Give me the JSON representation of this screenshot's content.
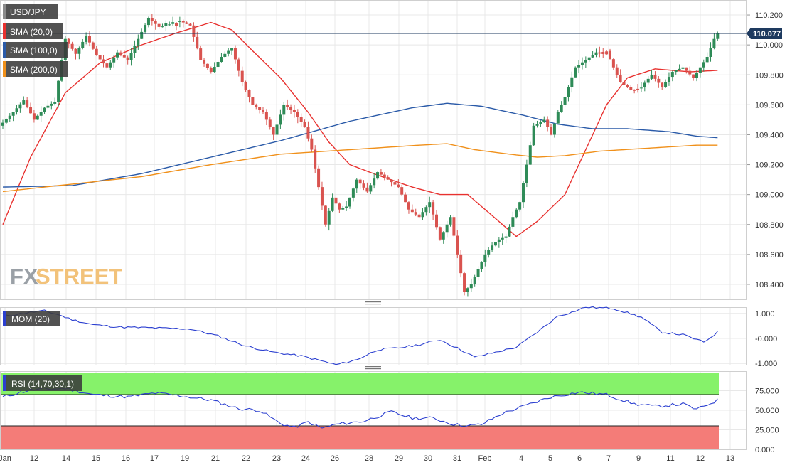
{
  "colors": {
    "bull": "#2e8b57",
    "bear": "#d9534f",
    "sma20": "#e8312f",
    "sma100": "#2a5aa8",
    "sma200": "#f0901a",
    "mom_line": "#2b3fd0",
    "rsi_line": "#2b3fd0",
    "rsi_overbought_band": "#86f26a",
    "rsi_oversold_band": "#f47c78",
    "price_marker_bg": "#1e3a5f",
    "legend_bg": "#3a3a3a",
    "grid": "#e8e8e8",
    "logo_fx": "#9aa0a6",
    "logo_street": "#f2c27a"
  },
  "logo": {
    "fx": "FX",
    "street": "STREET"
  },
  "price_panel": {
    "legend": [
      {
        "label": "USD/JPY",
        "color": "#8a8a8a"
      },
      {
        "label": "SMA (20,0)",
        "color": "#e8312f"
      },
      {
        "label": "SMA (100,0)",
        "color": "#2a5aa8"
      },
      {
        "label": "SMA (200,0)",
        "color": "#f0901a"
      }
    ],
    "current_price": "110.077"
  },
  "mom_panel": {
    "legend": "MOM (20)"
  },
  "rsi_panel": {
    "legend": "RSI (14,70,30,1)"
  },
  "chart_data": [
    {
      "type": "candlestick",
      "title": "USD/JPY",
      "ylim": [
        108.3,
        110.3
      ],
      "y_ticks": [
        "110.200",
        "110.000",
        "109.800",
        "109.600",
        "109.400",
        "109.200",
        "109.000",
        "108.800",
        "108.600",
        "108.400"
      ],
      "y_tick_values": [
        110.2,
        110.0,
        109.8,
        109.6,
        109.4,
        109.2,
        109.0,
        108.8,
        108.6,
        108.4
      ],
      "x_tick_labels": [
        "Jan",
        "12",
        "14",
        "15",
        "16",
        "17",
        "19",
        "21",
        "22",
        "23",
        "24",
        "26",
        "28",
        "29",
        "30",
        "31",
        "Feb",
        "4",
        "5",
        "6",
        "7",
        "9",
        "11",
        "12",
        "13"
      ],
      "current_price": 110.077,
      "close_path": [
        [
          0,
          109.48
        ],
        [
          3,
          109.55
        ],
        [
          6,
          109.63
        ],
        [
          9,
          109.5
        ],
        [
          12,
          109.58
        ],
        [
          15,
          109.62
        ],
        [
          18,
          110.04
        ],
        [
          21,
          109.94
        ],
        [
          24,
          110.06
        ],
        [
          27,
          109.93
        ],
        [
          30,
          109.85
        ],
        [
          33,
          109.95
        ],
        [
          36,
          109.9
        ],
        [
          39,
          110.04
        ],
        [
          42,
          110.18
        ],
        [
          45,
          110.12
        ],
        [
          48,
          110.14
        ],
        [
          51,
          110.16
        ],
        [
          54,
          110.13
        ],
        [
          57,
          109.9
        ],
        [
          60,
          109.82
        ],
        [
          63,
          109.92
        ],
        [
          66,
          109.98
        ],
        [
          69,
          109.75
        ],
        [
          72,
          109.6
        ],
        [
          75,
          109.55
        ],
        [
          78,
          109.4
        ],
        [
          81,
          109.6
        ],
        [
          84,
          109.55
        ],
        [
          87,
          109.45
        ],
        [
          89,
          109.3
        ],
        [
          91,
          109.05
        ],
        [
          93,
          108.8
        ],
        [
          95,
          108.98
        ],
        [
          97,
          108.9
        ],
        [
          99,
          108.92
        ],
        [
          102,
          109.1
        ],
        [
          105,
          109.02
        ],
        [
          108,
          109.15
        ],
        [
          111,
          109.1
        ],
        [
          114,
          109.05
        ],
        [
          117,
          108.9
        ],
        [
          120,
          108.85
        ],
        [
          123,
          108.95
        ],
        [
          126,
          108.7
        ],
        [
          129,
          108.85
        ],
        [
          131,
          108.6
        ],
        [
          133,
          108.35
        ],
        [
          135,
          108.4
        ],
        [
          137,
          108.5
        ],
        [
          139,
          108.6
        ],
        [
          141,
          108.66
        ],
        [
          143,
          108.7
        ],
        [
          145,
          108.72
        ],
        [
          147,
          108.85
        ],
        [
          149,
          108.95
        ],
        [
          151,
          109.2
        ],
        [
          153,
          109.46
        ],
        [
          156,
          109.5
        ],
        [
          158,
          109.4
        ],
        [
          160,
          109.55
        ],
        [
          162,
          109.65
        ],
        [
          165,
          109.85
        ],
        [
          168,
          109.9
        ],
        [
          171,
          109.95
        ],
        [
          174,
          109.96
        ],
        [
          176,
          109.85
        ],
        [
          178,
          109.75
        ],
        [
          181,
          109.7
        ],
        [
          184,
          109.72
        ],
        [
          187,
          109.8
        ],
        [
          190,
          109.72
        ],
        [
          193,
          109.82
        ],
        [
          196,
          109.85
        ],
        [
          199,
          109.78
        ],
        [
          201,
          109.85
        ],
        [
          203,
          109.92
        ],
        [
          205,
          110.04
        ],
        [
          206,
          110.077
        ]
      ],
      "series": [
        {
          "name": "SMA (20,0)",
          "points": [
            [
              0,
              108.8
            ],
            [
              8,
              109.25
            ],
            [
              18,
              109.68
            ],
            [
              28,
              109.88
            ],
            [
              40,
              110.0
            ],
            [
              50,
              110.08
            ],
            [
              60,
              110.15
            ],
            [
              66,
              110.1
            ],
            [
              72,
              109.96
            ],
            [
              80,
              109.78
            ],
            [
              88,
              109.55
            ],
            [
              94,
              109.35
            ],
            [
              100,
              109.2
            ],
            [
              108,
              109.13
            ],
            [
              118,
              109.05
            ],
            [
              126,
              109.0
            ],
            [
              134,
              109.0
            ],
            [
              140,
              108.88
            ],
            [
              148,
              108.72
            ],
            [
              154,
              108.82
            ],
            [
              162,
              109.0
            ],
            [
              168,
              109.3
            ],
            [
              174,
              109.6
            ],
            [
              180,
              109.78
            ],
            [
              188,
              109.84
            ],
            [
              198,
              109.82
            ],
            [
              206,
              109.83
            ]
          ]
        },
        {
          "name": "SMA (100,0)",
          "points": [
            [
              0,
              109.05
            ],
            [
              20,
              109.06
            ],
            [
              40,
              109.14
            ],
            [
              60,
              109.25
            ],
            [
              80,
              109.36
            ],
            [
              100,
              109.49
            ],
            [
              118,
              109.58
            ],
            [
              128,
              109.61
            ],
            [
              138,
              109.59
            ],
            [
              150,
              109.53
            ],
            [
              160,
              109.47
            ],
            [
              170,
              109.44
            ],
            [
              180,
              109.44
            ],
            [
              192,
              109.42
            ],
            [
              200,
              109.39
            ],
            [
              206,
              109.38
            ]
          ]
        },
        {
          "name": "SMA (200,0)",
          "points": [
            [
              0,
              109.02
            ],
            [
              20,
              109.07
            ],
            [
              40,
              109.12
            ],
            [
              60,
              109.2
            ],
            [
              80,
              109.27
            ],
            [
              100,
              109.3
            ],
            [
              120,
              109.33
            ],
            [
              128,
              109.34
            ],
            [
              136,
              109.3
            ],
            [
              146,
              109.27
            ],
            [
              154,
              109.25
            ],
            [
              162,
              109.26
            ],
            [
              172,
              109.29
            ],
            [
              186,
              109.31
            ],
            [
              200,
              109.33
            ],
            [
              206,
              109.33
            ]
          ]
        }
      ]
    },
    {
      "type": "line",
      "title": "MOM (20)",
      "ylim": [
        -1.05,
        1.25
      ],
      "y_ticks": [
        "1.000",
        "-0.000",
        "-1.000"
      ],
      "y_tick_values": [
        1.0,
        0.0,
        -1.0
      ],
      "series": [
        {
          "name": "MOM (20)",
          "points": [
            [
              0,
              0.88
            ],
            [
              8,
              1.05
            ],
            [
              12,
              1.1
            ],
            [
              16,
              0.95
            ],
            [
              20,
              0.75
            ],
            [
              26,
              0.55
            ],
            [
              34,
              0.45
            ],
            [
              44,
              0.42
            ],
            [
              54,
              0.38
            ],
            [
              62,
              0.1
            ],
            [
              70,
              -0.3
            ],
            [
              78,
              -0.55
            ],
            [
              86,
              -0.7
            ],
            [
              92,
              -0.9
            ],
            [
              96,
              -1.05
            ],
            [
              102,
              -0.85
            ],
            [
              108,
              -0.45
            ],
            [
              114,
              -0.38
            ],
            [
              120,
              -0.25
            ],
            [
              126,
              -0.05
            ],
            [
              132,
              -0.45
            ],
            [
              136,
              -0.75
            ],
            [
              142,
              -0.55
            ],
            [
              148,
              -0.35
            ],
            [
              154,
              0.25
            ],
            [
              160,
              0.9
            ],
            [
              164,
              1.05
            ],
            [
              168,
              1.25
            ],
            [
              176,
              1.2
            ],
            [
              184,
              0.85
            ],
            [
              190,
              0.25
            ],
            [
              196,
              0.15
            ],
            [
              202,
              -0.15
            ],
            [
              206,
              0.25
            ]
          ]
        }
      ]
    },
    {
      "type": "line",
      "title": "RSI (14,70,30,1)",
      "ylim": [
        0,
        100
      ],
      "y_ticks": [
        "75.000",
        "50.000",
        "25.000",
        "0.000"
      ],
      "y_tick_values": [
        75,
        50,
        25,
        0
      ],
      "bands": {
        "overbought": 70,
        "oversold": 30
      },
      "series": [
        {
          "name": "RSI (14,70,30,1)",
          "points": [
            [
              0,
              67
            ],
            [
              8,
              76
            ],
            [
              18,
              78
            ],
            [
              26,
              70
            ],
            [
              36,
              67
            ],
            [
              44,
              72
            ],
            [
              52,
              68
            ],
            [
              60,
              63
            ],
            [
              68,
              52
            ],
            [
              74,
              50
            ],
            [
              80,
              33
            ],
            [
              84,
              28
            ],
            [
              88,
              35
            ],
            [
              92,
              27
            ],
            [
              96,
              32
            ],
            [
              104,
              36
            ],
            [
              112,
              48
            ],
            [
              118,
              40
            ],
            [
              124,
              40
            ],
            [
              130,
              32
            ],
            [
              134,
              30
            ],
            [
              138,
              32
            ],
            [
              144,
              46
            ],
            [
              150,
              55
            ],
            [
              158,
              67
            ],
            [
              166,
              73
            ],
            [
              174,
              70
            ],
            [
              182,
              58
            ],
            [
              188,
              55
            ],
            [
              196,
              58
            ],
            [
              200,
              51
            ],
            [
              206,
              63
            ]
          ]
        }
      ]
    }
  ]
}
